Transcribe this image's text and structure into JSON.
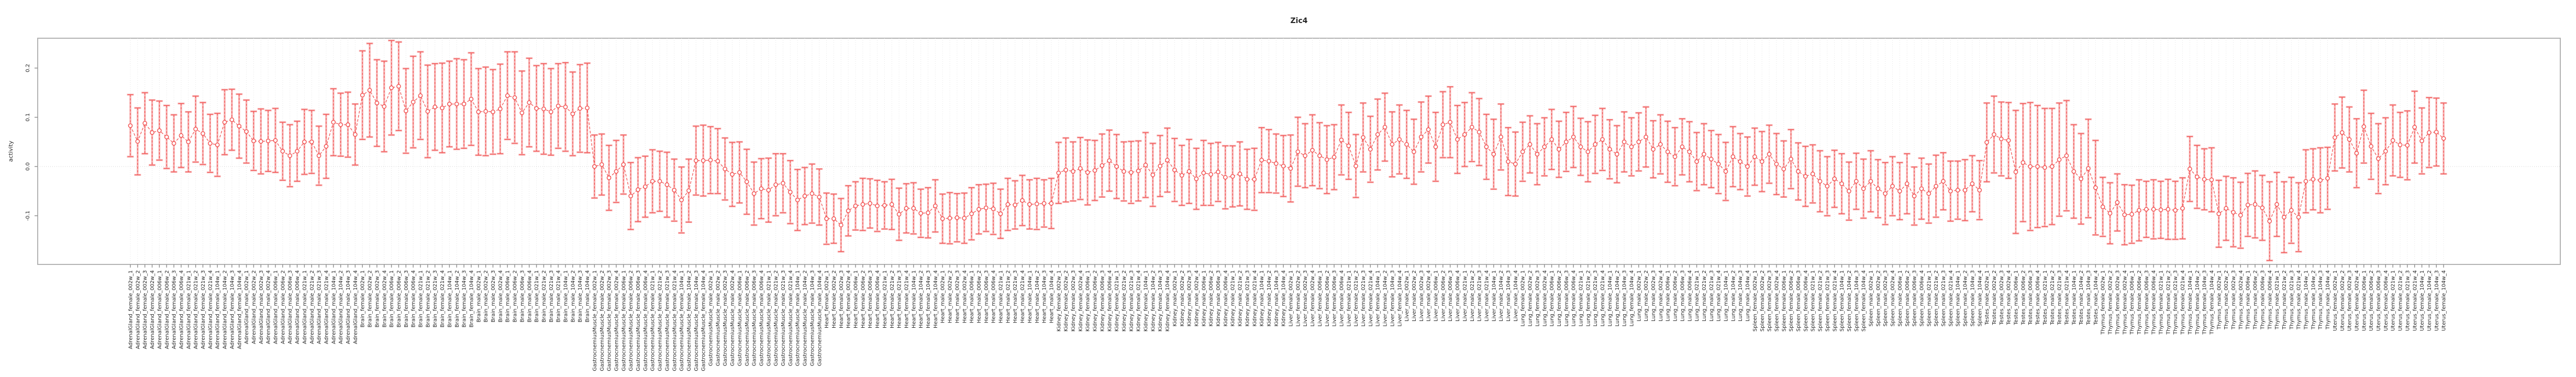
{
  "title": "Zic4",
  "y_axis": {
    "label": "activity",
    "ticks": [
      0.2,
      0.1,
      0.0,
      -0.1
    ],
    "tick_labels": [
      "0.2",
      "0.1",
      "0.0",
      "-0.1"
    ],
    "ylim": [
      -0.2,
      0.26
    ]
  },
  "x_axis": {
    "label_format": "{tissue}_{sex}_{timepoint}_{replicate}",
    "timepoints": [
      "002w",
      "006w",
      "021w",
      "104w"
    ],
    "replicates": [
      "1",
      "2",
      "3",
      "4"
    ]
  },
  "colors": {
    "series_red": "#f25454",
    "errorbar_pink": "#f7b3b3",
    "gridline": "#e1e1e1",
    "zero_line": "#c9c9c9",
    "panel_border": "#b3b3b3",
    "tick": "#8c8c8c",
    "text": "#262626"
  },
  "chart_data": {
    "type": "line",
    "style": "pointplot_with_errorbars",
    "title": "Zic4",
    "xlabel": "",
    "ylabel": "activity",
    "grid": "vertical_dotted_per_sample_plus_zero_line",
    "legend": "none",
    "groups": [
      {
        "tissue": "AdrenalGland",
        "sex": "female",
        "values": [
          0.083,
          0.051,
          0.088,
          0.069,
          0.073,
          0.06,
          0.047,
          0.063,
          0.05,
          0.076,
          0.067,
          0.047,
          0.044,
          0.09,
          0.095,
          0.082
        ],
        "errors": [
          0.063,
          0.068,
          0.062,
          0.066,
          0.06,
          0.064,
          0.058,
          0.065,
          0.061,
          0.067,
          0.063,
          0.059,
          0.064,
          0.066,
          0.062,
          0.065
        ]
      },
      {
        "tissue": "AdrenalGland",
        "sex": "male",
        "values": [
          0.071,
          0.052,
          0.051,
          0.052,
          0.053,
          0.031,
          0.022,
          0.031,
          0.05,
          0.05,
          0.022,
          0.041,
          0.09,
          0.085,
          0.085,
          0.065
        ],
        "errors": [
          0.064,
          0.06,
          0.066,
          0.062,
          0.065,
          0.059,
          0.063,
          0.061,
          0.066,
          0.064,
          0.06,
          0.065,
          0.068,
          0.064,
          0.066,
          0.062
        ]
      },
      {
        "tissue": "Brain",
        "sex": "female",
        "values": [
          0.145,
          0.155,
          0.129,
          0.122,
          0.16,
          0.163,
          0.113,
          0.131,
          0.144,
          0.112,
          0.121,
          0.119,
          0.127,
          0.127,
          0.127,
          0.137
        ],
        "errors": [
          0.09,
          0.095,
          0.088,
          0.092,
          0.096,
          0.09,
          0.086,
          0.093,
          0.089,
          0.094,
          0.088,
          0.091,
          0.087,
          0.092,
          0.09,
          0.094
        ]
      },
      {
        "tissue": "Brain",
        "sex": "male",
        "values": [
          0.111,
          0.112,
          0.111,
          0.117,
          0.144,
          0.14,
          0.109,
          0.13,
          0.118,
          0.117,
          0.111,
          0.123,
          0.121,
          0.107,
          0.118,
          0.119
        ],
        "errors": [
          0.088,
          0.09,
          0.086,
          0.091,
          0.089,
          0.093,
          0.085,
          0.09,
          0.087,
          0.092,
          0.088,
          0.086,
          0.09,
          0.085,
          0.089,
          0.091
        ]
      },
      {
        "tissue": "GastrocnemiusMuscle",
        "sex": "female",
        "values": [
          0.0,
          0.004,
          -0.023,
          -0.01,
          0.004,
          -0.06,
          -0.047,
          -0.041,
          -0.03,
          -0.03,
          -0.037,
          -0.048,
          -0.068,
          -0.049,
          0.012,
          0.012
        ],
        "errors": [
          0.064,
          0.062,
          0.066,
          0.063,
          0.06,
          0.068,
          0.065,
          0.062,
          0.064,
          0.061,
          0.066,
          0.063,
          0.067,
          0.064,
          0.07,
          0.072
        ]
      },
      {
        "tissue": "GastrocnemiusMuscle",
        "sex": "male",
        "values": [
          0.013,
          0.011,
          -0.005,
          -0.016,
          -0.012,
          -0.031,
          -0.055,
          -0.045,
          -0.048,
          -0.037,
          -0.034,
          -0.052,
          -0.068,
          -0.06,
          -0.055,
          -0.062
        ],
        "errors": [
          0.068,
          0.066,
          0.063,
          0.065,
          0.062,
          0.066,
          0.064,
          0.061,
          0.065,
          0.063,
          0.06,
          0.064,
          0.062,
          0.058,
          0.06,
          0.057
        ]
      },
      {
        "tissue": "Heart",
        "sex": "female",
        "values": [
          -0.106,
          -0.106,
          -0.119,
          -0.09,
          -0.08,
          -0.077,
          -0.075,
          -0.08,
          -0.079,
          -0.077,
          -0.097,
          -0.085,
          -0.085,
          -0.095,
          -0.094,
          -0.08
        ],
        "errors": [
          0.052,
          0.05,
          0.054,
          0.051,
          0.049,
          0.053,
          0.05,
          0.052,
          0.048,
          0.051,
          0.053,
          0.05,
          0.052,
          0.049,
          0.051,
          0.053
        ]
      },
      {
        "tissue": "Heart",
        "sex": "male",
        "values": [
          -0.106,
          -0.105,
          -0.104,
          -0.105,
          -0.096,
          -0.087,
          -0.084,
          -0.086,
          -0.096,
          -0.077,
          -0.078,
          -0.069,
          -0.077,
          -0.076,
          -0.075,
          -0.075
        ],
        "errors": [
          0.05,
          0.052,
          0.049,
          0.051,
          0.053,
          0.05,
          0.048,
          0.052,
          0.05,
          0.053,
          0.049,
          0.051,
          0.05,
          0.052,
          0.048,
          0.051
        ]
      },
      {
        "tissue": "Kidney",
        "sex": "female",
        "values": [
          -0.013,
          -0.007,
          -0.01,
          -0.004,
          -0.012,
          -0.008,
          0.002,
          0.012,
          0.0,
          -0.01,
          -0.012,
          -0.009,
          0.003,
          -0.017,
          0.001,
          0.013
        ],
        "errors": [
          0.062,
          0.065,
          0.06,
          0.063,
          0.066,
          0.061,
          0.064,
          0.062,
          0.065,
          0.06,
          0.063,
          0.061,
          0.066,
          0.064,
          0.062,
          0.065
        ]
      },
      {
        "tissue": "Kidney",
        "sex": "male",
        "values": [
          -0.007,
          -0.018,
          -0.01,
          -0.025,
          -0.013,
          -0.016,
          -0.011,
          -0.022,
          -0.02,
          -0.015,
          -0.026,
          -0.026,
          0.013,
          0.011,
          0.006,
          0.001
        ],
        "errors": [
          0.064,
          0.061,
          0.065,
          0.062,
          0.066,
          0.063,
          0.06,
          0.064,
          0.062,
          0.065,
          0.061,
          0.063,
          0.066,
          0.064,
          0.06,
          0.062
        ]
      },
      {
        "tissue": "Liver",
        "sex": "female",
        "values": [
          -0.004,
          0.03,
          0.022,
          0.033,
          0.022,
          0.014,
          0.019,
          0.054,
          0.042,
          0.001,
          0.059,
          0.035,
          0.065,
          0.08,
          0.045,
          0.055
        ],
        "errors": [
          0.068,
          0.07,
          0.065,
          0.072,
          0.067,
          0.069,
          0.066,
          0.071,
          0.068,
          0.064,
          0.07,
          0.067,
          0.072,
          0.069,
          0.066,
          0.07
        ]
      },
      {
        "tissue": "Liver",
        "sex": "male",
        "values": [
          0.045,
          0.03,
          0.06,
          0.075,
          0.04,
          0.085,
          0.09,
          0.055,
          0.065,
          0.08,
          0.07,
          0.04,
          0.025,
          0.06,
          0.01,
          0.005
        ],
        "errors": [
          0.069,
          0.066,
          0.071,
          0.068,
          0.07,
          0.067,
          0.072,
          0.069,
          0.065,
          0.07,
          0.068,
          0.066,
          0.071,
          0.067,
          0.069,
          0.065
        ]
      },
      {
        "tissue": "Lung",
        "sex": "female",
        "values": [
          0.03,
          0.045,
          0.025,
          0.04,
          0.055,
          0.035,
          0.05,
          0.06,
          0.04,
          0.03,
          0.045,
          0.055,
          0.035,
          0.025,
          0.05,
          0.04
        ],
        "errors": [
          0.06,
          0.058,
          0.062,
          0.059,
          0.061,
          0.057,
          0.06,
          0.062,
          0.058,
          0.061,
          0.059,
          0.063,
          0.06,
          0.058,
          0.061,
          0.059
        ]
      },
      {
        "tissue": "Lung",
        "sex": "male",
        "values": [
          0.05,
          0.06,
          0.035,
          0.045,
          0.03,
          0.02,
          0.04,
          0.03,
          0.01,
          0.025,
          0.015,
          0.005,
          -0.01,
          0.02,
          0.01,
          0.0
        ],
        "errors": [
          0.059,
          0.061,
          0.058,
          0.06,
          0.062,
          0.059,
          0.057,
          0.061,
          0.059,
          0.062,
          0.058,
          0.06,
          0.059,
          0.061,
          0.057,
          0.06
        ]
      },
      {
        "tissue": "Spleen",
        "sex": "female",
        "values": [
          0.02,
          0.01,
          0.025,
          0.005,
          -0.005,
          0.015,
          -0.01,
          -0.02,
          -0.015,
          -0.03,
          -0.04,
          -0.025,
          -0.035,
          -0.05,
          -0.03,
          -0.045
        ],
        "errors": [
          0.058,
          0.061,
          0.059,
          0.062,
          0.057,
          0.06,
          0.058,
          0.061,
          0.059,
          0.062,
          0.06,
          0.058,
          0.061,
          0.059,
          0.057,
          0.06
        ]
      },
      {
        "tissue": "Spleen",
        "sex": "male",
        "values": [
          -0.03,
          -0.045,
          -0.055,
          -0.04,
          -0.05,
          -0.035,
          -0.06,
          -0.045,
          -0.055,
          -0.04,
          -0.03,
          -0.05,
          -0.048,
          -0.048,
          -0.035,
          -0.048
        ],
        "errors": [
          0.062,
          0.059,
          0.063,
          0.06,
          0.058,
          0.061,
          0.059,
          0.062,
          0.06,
          0.063,
          0.058,
          0.061,
          0.059,
          0.062,
          0.057,
          0.06
        ]
      },
      {
        "tissue": "Testes",
        "sex": "male",
        "values": [
          0.049,
          0.065,
          0.056,
          0.053,
          -0.011,
          0.008,
          0.0,
          0.0,
          -0.002,
          0.0,
          0.014,
          0.022,
          -0.01,
          -0.025,
          -0.004,
          -0.043
        ],
        "errors": [
          0.08,
          0.078,
          0.075,
          0.077,
          0.125,
          0.12,
          0.13,
          0.124,
          0.12,
          0.118,
          0.115,
          0.112,
          0.095,
          0.092,
          0.1,
          0.096
        ]
      },
      {
        "tissue": "Thymus",
        "sex": "female",
        "values": [
          -0.082,
          -0.095,
          -0.073,
          -0.098,
          -0.097,
          -0.089,
          -0.087,
          -0.087,
          -0.088,
          -0.087,
          -0.089,
          -0.085,
          -0.005,
          -0.021,
          -0.026,
          -0.027
        ],
        "errors": [
          0.06,
          0.062,
          0.058,
          0.061,
          0.059,
          0.062,
          0.057,
          0.06,
          0.058,
          0.061,
          0.059,
          0.062,
          0.066,
          0.064,
          0.062,
          0.065
        ]
      },
      {
        "tissue": "Thymus",
        "sex": "male",
        "values": [
          -0.096,
          -0.085,
          -0.093,
          -0.099,
          -0.078,
          -0.077,
          -0.084,
          -0.111,
          -0.077,
          -0.103,
          -0.089,
          -0.103,
          -0.03,
          -0.026,
          -0.028,
          -0.024
        ],
        "errors": [
          0.068,
          0.065,
          0.07,
          0.067,
          0.064,
          0.068,
          0.066,
          0.08,
          0.065,
          0.072,
          0.067,
          0.07,
          0.064,
          0.062,
          0.066,
          0.063
        ]
      },
      {
        "tissue": "Uterus",
        "sex": "female",
        "values": [
          0.059,
          0.069,
          0.055,
          0.027,
          0.081,
          0.041,
          0.016,
          0.031,
          0.053,
          0.044,
          0.043,
          0.08,
          0.052,
          0.069,
          0.07,
          0.057
        ],
        "errors": [
          0.068,
          0.072,
          0.066,
          0.07,
          0.074,
          0.067,
          0.071,
          0.068,
          0.072,
          0.066,
          0.07,
          0.073,
          0.067,
          0.071,
          0.069,
          0.072
        ]
      }
    ]
  }
}
